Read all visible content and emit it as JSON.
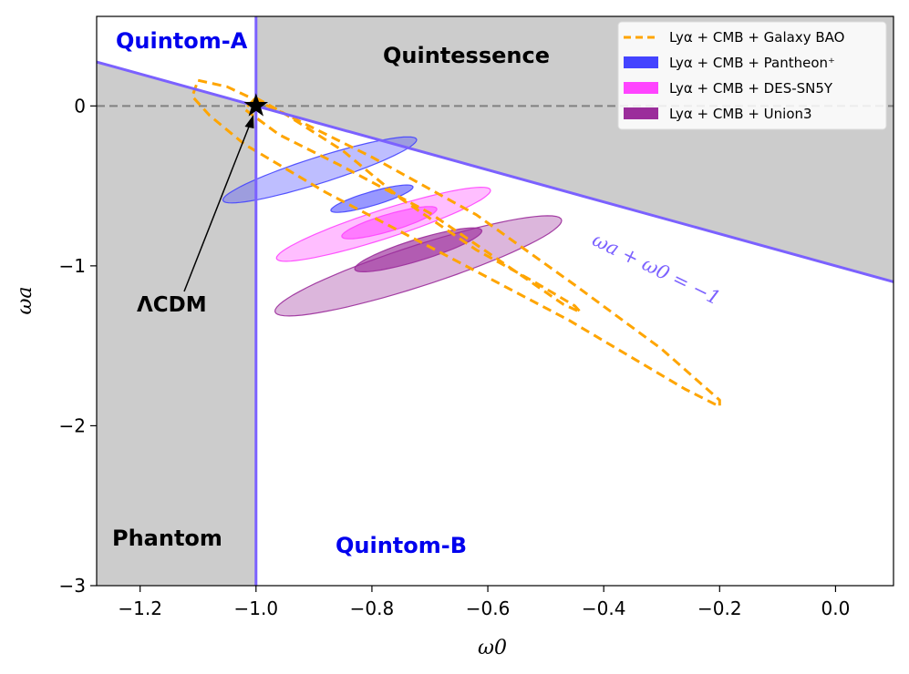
{
  "chart_data": {
    "type": "contour",
    "xlabel": "ω0",
    "ylabel": "ωa",
    "xlim": [
      -1.275,
      0.1
    ],
    "ylim": [
      -3,
      0.56
    ],
    "xticks": [
      -1.2,
      -1.0,
      -0.8,
      -0.6,
      -0.4,
      -0.2,
      0.0
    ],
    "xtick_labels": [
      "−1.2",
      "−1.0",
      "−0.8",
      "−0.6",
      "−0.4",
      "−0.2",
      "0.0"
    ],
    "yticks": [
      -3,
      -2,
      -1,
      0
    ],
    "ytick_labels": [
      "−3",
      "−2",
      "−1",
      "0"
    ],
    "regions": [
      {
        "name": "quintom-a",
        "label": "Quintom-A",
        "color": "#0000ee"
      },
      {
        "name": "quintessence",
        "label": "Quintessence",
        "color": "#000000"
      },
      {
        "name": "phantom",
        "label": "Phantom",
        "color": "#000000"
      },
      {
        "name": "quintom-b",
        "label": "Quintom-B",
        "color": "#0000ee"
      }
    ],
    "region_fill": "#cccccc",
    "reference_lines": [
      {
        "name": "w0-equals-minus-one",
        "x": -1.0,
        "color": "#7b61ff"
      },
      {
        "name": "wa-plus-w0-equals-minus-one",
        "slope": -1,
        "intercept": -1,
        "color": "#7b61ff",
        "label": "ωa + ω0 = −1"
      },
      {
        "name": "wa-zero",
        "y": 0,
        "color": "#808080",
        "style": "dashed"
      }
    ],
    "lcdm_point": {
      "x": -1.0,
      "y": 0.0,
      "label": "ΛCDM"
    },
    "series": [
      {
        "name": "Lyα + CMB + Galaxy BAO",
        "style": "dashed-contour",
        "color": "#ffa500",
        "contours": [
          [
            [
              -1.0,
              0.05
            ],
            [
              -0.95,
              -0.05
            ],
            [
              -0.85,
              -0.28
            ],
            [
              -0.75,
              -0.58
            ],
            [
              -0.62,
              -0.9
            ],
            [
              -0.52,
              -1.1
            ],
            [
              -0.45,
              -1.25
            ],
            [
              -0.44,
              -1.29
            ],
            [
              -0.47,
              -1.24
            ],
            [
              -0.55,
              -1.04
            ],
            [
              -0.7,
              -0.67
            ],
            [
              -0.85,
              -0.38
            ],
            [
              -0.96,
              -0.18
            ],
            [
              -1.02,
              -0.02
            ],
            [
              -1.0,
              0.05
            ]
          ],
          [
            [
              -1.1,
              0.16
            ],
            [
              -1.05,
              0.12
            ],
            [
              -0.95,
              -0.05
            ],
            [
              -0.8,
              -0.32
            ],
            [
              -0.62,
              -0.68
            ],
            [
              -0.45,
              -1.12
            ],
            [
              -0.3,
              -1.52
            ],
            [
              -0.2,
              -1.84
            ],
            [
              -0.2,
              -1.88
            ],
            [
              -0.26,
              -1.77
            ],
            [
              -0.46,
              -1.34
            ],
            [
              -0.68,
              -0.92
            ],
            [
              -0.88,
              -0.54
            ],
            [
              -1.02,
              -0.24
            ],
            [
              -1.08,
              -0.06
            ],
            [
              -1.11,
              0.06
            ],
            [
              -1.1,
              0.16
            ]
          ]
        ]
      },
      {
        "name": "Lyα + CMB + Pantheon⁺",
        "color": "#4444ff",
        "ellipses": [
          {
            "level": "68%",
            "cx": -0.8,
            "cy": -0.58,
            "rx": 0.107,
            "ry": 0.03,
            "angle_deg": 51.3,
            "opacity": 0.55
          },
          {
            "level": "95%",
            "cx": -0.89,
            "cy": -0.4,
            "rx": 0.26,
            "ry": 0.055,
            "angle_deg": 51.6,
            "opacity": 0.35
          }
        ]
      },
      {
        "name": "Lyα + CMB + DES-SN5Y",
        "color": "#ff44ff",
        "ellipses": [
          {
            "level": "68%",
            "cx": -0.77,
            "cy": -0.73,
            "rx": 0.125,
            "ry": 0.036,
            "angle_deg": 52.0,
            "opacity": 0.55
          },
          {
            "level": "95%",
            "cx": -0.78,
            "cy": -0.74,
            "rx": 0.29,
            "ry": 0.06,
            "angle_deg": 52.0,
            "opacity": 0.35
          }
        ]
      },
      {
        "name": "Lyα + CMB + Union3",
        "color": "#9b2d9b",
        "ellipses": [
          {
            "level": "68%",
            "cx": -0.72,
            "cy": -0.9,
            "rx": 0.17,
            "ry": 0.045,
            "angle_deg": 52.4,
            "opacity": 0.65
          },
          {
            "level": "95%",
            "cx": -0.72,
            "cy": -1.0,
            "rx": 0.39,
            "ry": 0.085,
            "angle_deg": 52.4,
            "opacity": 0.35
          }
        ]
      }
    ],
    "legend": {
      "position": "top-right",
      "entries": [
        {
          "label": "Lyα + CMB + Galaxy BAO",
          "color": "#ffa500",
          "kind": "dashed-line"
        },
        {
          "label": "Lyα + CMB + Pantheon⁺",
          "color": "#4444ff",
          "kind": "patch"
        },
        {
          "label": "Lyα + CMB + DES-SN5Y",
          "color": "#ff44ff",
          "kind": "patch"
        },
        {
          "label": "Lyα + CMB + Union3",
          "color": "#9b2d9b",
          "kind": "patch"
        }
      ]
    }
  }
}
